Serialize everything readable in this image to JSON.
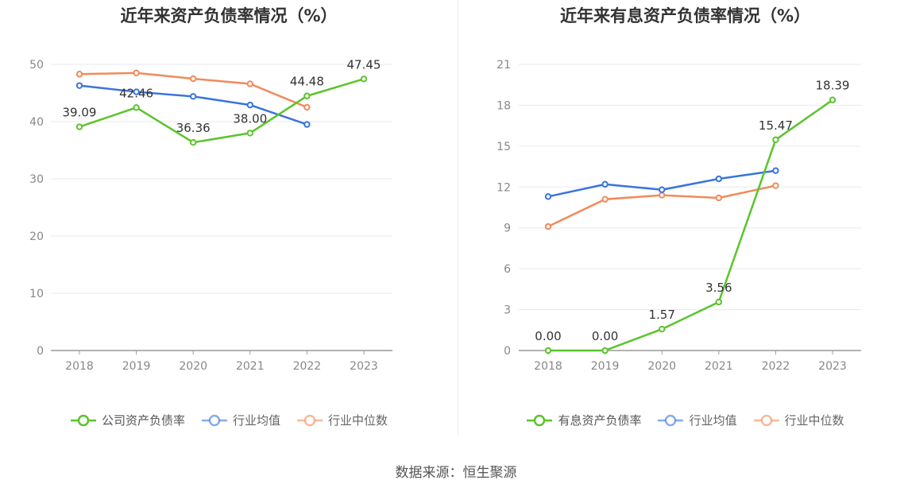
{
  "source_text": "数据来源：恒生聚源",
  "colors": {
    "company": "#5ac42c",
    "industry_avg": "#3a74dc",
    "industry_median": "#f28a5a",
    "grid": "#e6e9f2",
    "axis": "#999999"
  },
  "chart_data": [
    {
      "type": "line",
      "title": "近年来资产负债率情况（%）",
      "x": [
        "2018",
        "2019",
        "2020",
        "2021",
        "2022",
        "2023"
      ],
      "ylim": [
        0,
        50
      ],
      "yticks": [
        0,
        10,
        20,
        30,
        40,
        50
      ],
      "series": [
        {
          "key": "company",
          "name": "公司资产负债率",
          "values": [
            39.09,
            42.46,
            36.36,
            38.0,
            44.48,
            47.45
          ],
          "labels": [
            "39.09",
            "42.46",
            "36.36",
            "38.00",
            "44.48",
            "47.45"
          ]
        },
        {
          "key": "industry_avg",
          "name": "行业均值",
          "values": [
            46.3,
            45.2,
            44.4,
            42.9,
            39.5,
            null
          ]
        },
        {
          "key": "industry_median",
          "name": "行业中位数",
          "values": [
            48.3,
            48.5,
            47.5,
            46.6,
            42.5,
            null
          ]
        }
      ],
      "legend_position": "bottom",
      "grid": true
    },
    {
      "type": "line",
      "title": "近年来有息资产负债率情况（%）",
      "x": [
        "2018",
        "2019",
        "2020",
        "2021",
        "2022",
        "2023"
      ],
      "ylim": [
        0,
        21
      ],
      "yticks": [
        0,
        3,
        6,
        9,
        12,
        15,
        18,
        21
      ],
      "series": [
        {
          "key": "company",
          "name": "有息资产负债率",
          "values": [
            0.0,
            0.0,
            1.57,
            3.56,
            15.47,
            18.39
          ],
          "labels": [
            "0.00",
            "0.00",
            "1.57",
            "3.56",
            "15.47",
            "18.39"
          ]
        },
        {
          "key": "industry_avg",
          "name": "行业均值",
          "values": [
            11.3,
            12.2,
            11.8,
            12.6,
            13.2,
            null
          ]
        },
        {
          "key": "industry_median",
          "name": "行业中位数",
          "values": [
            9.1,
            11.1,
            11.4,
            11.2,
            12.1,
            null
          ]
        }
      ],
      "legend_position": "bottom",
      "grid": true
    }
  ]
}
